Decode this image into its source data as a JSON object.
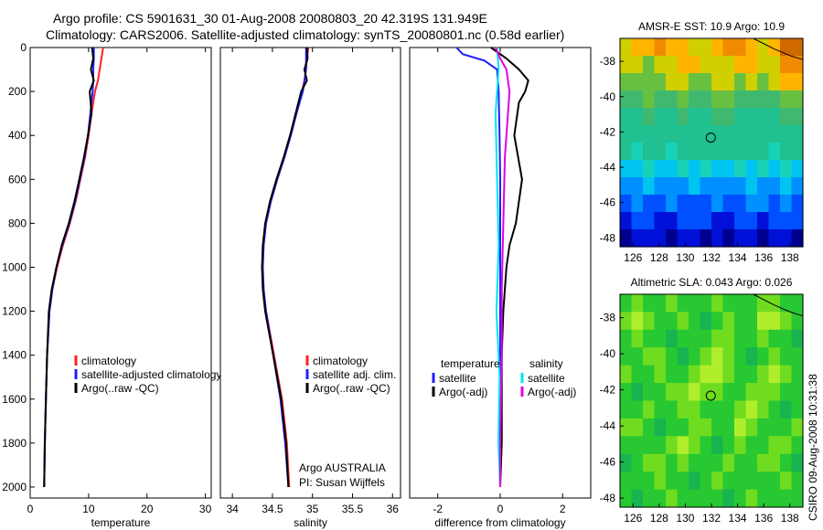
{
  "titles": {
    "line1": "Argo profile: CS 5901631_30 01-Aug-2008 20080803_20 42.319S 131.949E",
    "line2": "Climatology: CARS2006. Satellite-adjusted climatology: synTS_20080801.nc (0.58d earlier)"
  },
  "side_label": "CSIRO 09-Aug-2008 10:31:38",
  "institution": {
    "line1": "Argo AUSTRALIA",
    "line2": "PI: Susan Wijffels"
  },
  "colors": {
    "red": "#ff2020",
    "blue": "#1e1eff",
    "black": "#000000",
    "cyan": "#00e5ee",
    "magenta": "#e000e0"
  },
  "chart_data": [
    {
      "type": "line",
      "xlabel": "temperature",
      "xlim": [
        0,
        31
      ],
      "ylim": [
        2050,
        0
      ],
      "y_reversed": true,
      "xticks": [
        0,
        10,
        20,
        30
      ],
      "yticks": [
        0,
        200,
        400,
        600,
        800,
        1000,
        1200,
        1400,
        1600,
        1800,
        2000
      ],
      "legend": {
        "placement": "bottom-right",
        "entries": [
          "climatology",
          "satellite-adjusted climatology",
          "Argo(..raw -QC)"
        ]
      },
      "series": [
        {
          "name": "climatology",
          "color": "red",
          "x": [
            12.5,
            12.2,
            11.9,
            11.6,
            11.1,
            10.5,
            10.0,
            9.4,
            8.6,
            7.8,
            6.8,
            5.6,
            4.6,
            3.8,
            3.3,
            2.9,
            2.7,
            2.5,
            2.4
          ],
          "y": [
            0,
            50,
            100,
            150,
            200,
            300,
            400,
            500,
            600,
            700,
            800,
            900,
            1000,
            1100,
            1200,
            1400,
            1600,
            1800,
            2000
          ]
        },
        {
          "name": "satellite-adjusted climatology",
          "color": "blue",
          "x": [
            10.9,
            10.9,
            10.8,
            10.8,
            10.7,
            10.3,
            9.9,
            9.3,
            8.5,
            7.7,
            6.7,
            5.5,
            4.5,
            3.8,
            3.3,
            2.9,
            2.7,
            2.5,
            2.4
          ],
          "y": [
            0,
            50,
            100,
            150,
            200,
            300,
            400,
            500,
            600,
            700,
            800,
            900,
            1000,
            1100,
            1200,
            1400,
            1600,
            1800,
            2000
          ]
        },
        {
          "name": "Argo(..raw -QC)",
          "color": "black",
          "x": [
            10.6,
            10.8,
            10.4,
            10.9,
            10.2,
            10.5,
            9.9,
            9.2,
            8.4,
            7.6,
            6.6,
            5.4,
            4.5,
            3.7,
            3.2,
            2.9,
            2.7,
            2.5,
            2.4
          ],
          "y": [
            0,
            50,
            100,
            150,
            200,
            300,
            400,
            500,
            600,
            700,
            800,
            900,
            1000,
            1100,
            1200,
            1400,
            1600,
            1800,
            2000
          ]
        }
      ]
    },
    {
      "type": "line",
      "xlabel": "salinity",
      "xlim": [
        33.85,
        36.1
      ],
      "ylim": [
        2050,
        0
      ],
      "y_reversed": true,
      "xticks": [
        34,
        34.5,
        35,
        35.5,
        36
      ],
      "yticks": [],
      "legend": {
        "placement": "bottom-right",
        "entries": [
          "climatology",
          "satellite adj. clim.",
          "Argo(..raw -QC)"
        ]
      },
      "series": [
        {
          "name": "climatology",
          "color": "red",
          "x": [
            34.95,
            34.93,
            34.92,
            34.9,
            34.87,
            34.8,
            34.73,
            34.65,
            34.56,
            34.48,
            34.42,
            34.39,
            34.38,
            34.39,
            34.42,
            34.52,
            34.62,
            34.68,
            34.71
          ],
          "y": [
            0,
            50,
            100,
            150,
            200,
            300,
            400,
            500,
            600,
            700,
            800,
            900,
            1000,
            1100,
            1200,
            1400,
            1600,
            1800,
            2000
          ]
        },
        {
          "name": "satellite adj. clim.",
          "color": "blue",
          "x": [
            34.92,
            34.92,
            34.92,
            34.9,
            34.88,
            34.8,
            34.73,
            34.65,
            34.56,
            34.48,
            34.42,
            34.39,
            34.38,
            34.39,
            34.42,
            34.51,
            34.6,
            34.66,
            34.7
          ],
          "y": [
            0,
            50,
            100,
            150,
            200,
            300,
            400,
            500,
            600,
            700,
            800,
            900,
            1000,
            1100,
            1200,
            1400,
            1600,
            1800,
            2000
          ]
        },
        {
          "name": "Argo(..raw -QC)",
          "color": "black",
          "x": [
            34.93,
            34.94,
            34.9,
            34.93,
            34.86,
            34.79,
            34.72,
            34.64,
            34.55,
            34.47,
            34.41,
            34.38,
            34.37,
            34.38,
            34.41,
            34.51,
            34.61,
            34.67,
            34.7
          ],
          "y": [
            0,
            50,
            100,
            150,
            200,
            300,
            400,
            500,
            600,
            700,
            800,
            900,
            1000,
            1100,
            1200,
            1400,
            1600,
            1800,
            2000
          ]
        }
      ]
    },
    {
      "type": "line",
      "xlabel": "difference from climatology",
      "xlim": [
        -2.9,
        2.9
      ],
      "ylim": [
        2050,
        0
      ],
      "y_reversed": true,
      "xticks": [
        -2,
        0,
        2
      ],
      "yticks": [],
      "legend": {
        "placement": "bottom",
        "groups": [
          {
            "header": "temperature",
            "entries": [
              "satellite",
              "Argo(-adj)"
            ]
          },
          {
            "header": "salinity",
            "entries": [
              "satellite",
              "Argo(-adj)"
            ]
          }
        ]
      },
      "series": [
        {
          "name": "temperature satellite",
          "color": "blue",
          "x": [
            -1.4,
            -1.2,
            -0.5,
            -0.1,
            -0.05,
            -0.02,
            0.0,
            0.0,
            0.0,
            0.0,
            0.0,
            0.0
          ],
          "y": [
            0,
            30,
            60,
            100,
            200,
            400,
            600,
            800,
            1000,
            1400,
            1800,
            2000
          ]
        },
        {
          "name": "temperature Argo(-adj)",
          "color": "black",
          "x": [
            -0.3,
            0.2,
            0.6,
            0.9,
            0.8,
            0.6,
            0.45,
            0.7,
            0.5,
            0.3,
            0.2,
            0.1,
            0.05,
            0.05,
            0.0
          ],
          "y": [
            0,
            50,
            100,
            150,
            200,
            250,
            400,
            600,
            800,
            900,
            1000,
            1200,
            1400,
            1800,
            2000
          ]
        },
        {
          "name": "salinity satellite",
          "color": "cyan",
          "x": [
            -0.1,
            -0.05,
            -0.1,
            -0.15,
            -0.1,
            -0.05,
            -0.12,
            -0.02,
            -0.06,
            0.0
          ],
          "y": [
            0,
            100,
            200,
            300,
            600,
            900,
            1200,
            1500,
            1800,
            2000
          ]
        },
        {
          "name": "salinity Argo(-adj)",
          "color": "magenta",
          "x": [
            -0.15,
            0.0,
            0.2,
            0.3,
            0.25,
            0.15,
            0.1,
            0.05,
            0.05,
            0.0,
            0.0
          ],
          "y": [
            0,
            50,
            100,
            200,
            300,
            500,
            800,
            1100,
            1400,
            1800,
            2000
          ]
        }
      ]
    },
    {
      "type": "heatmap",
      "title": "AMSR-E SST: 10.9  Argo: 10.9",
      "xlim": [
        125,
        139
      ],
      "ylim": [
        -48.5,
        -36.7
      ],
      "xticks": [
        126,
        128,
        130,
        132,
        134,
        136,
        138
      ],
      "yticks": [
        -38,
        -40,
        -42,
        -44,
        -46,
        -48
      ],
      "marker": {
        "x": 131.95,
        "y": -42.32
      },
      "rows": [
        [
          3,
          4,
          4,
          5,
          4,
          4,
          3,
          3,
          4,
          5,
          5,
          4,
          3,
          4,
          6,
          6
        ],
        [
          3,
          3,
          2,
          3,
          3,
          4,
          4,
          3,
          3,
          3,
          4,
          4,
          3,
          3,
          5,
          5
        ],
        [
          2,
          2,
          2,
          2,
          3,
          3,
          2,
          2,
          3,
          3,
          2,
          3,
          2,
          3,
          4,
          4
        ],
        [
          1,
          1,
          2,
          1,
          1,
          2,
          1,
          1,
          2,
          2,
          1,
          1,
          1,
          1,
          2,
          2
        ],
        [
          0,
          0,
          1,
          0,
          0,
          1,
          0,
          0,
          1,
          1,
          0,
          0,
          0,
          0,
          1,
          1
        ],
        [
          0,
          0,
          0,
          0,
          0,
          0,
          0,
          0,
          0,
          0,
          0,
          0,
          0,
          0,
          0,
          0
        ],
        [
          0,
          -1,
          0,
          0,
          -1,
          0,
          0,
          0,
          0,
          0,
          0,
          0,
          0,
          -1,
          0,
          0
        ],
        [
          -2,
          -2,
          -1,
          -2,
          -2,
          -1,
          -2,
          -1,
          -2,
          -2,
          -1,
          -2,
          -1,
          -2,
          -1,
          -2
        ],
        [
          -3,
          -3,
          -2,
          -3,
          -3,
          -3,
          -2,
          -3,
          -3,
          -3,
          -3,
          -2,
          -3,
          -3,
          -2,
          -3
        ],
        [
          -4,
          -3,
          -4,
          -4,
          -3,
          -4,
          -4,
          -4,
          -3,
          -4,
          -4,
          -3,
          -3,
          -4,
          -3,
          -4
        ],
        [
          -5,
          -4,
          -4,
          -5,
          -5,
          -4,
          -4,
          -4,
          -5,
          -5,
          -4,
          -4,
          -5,
          -4,
          -4,
          -4
        ],
        [
          -6,
          -5,
          -5,
          -5,
          -6,
          -5,
          -5,
          -6,
          -5,
          -6,
          -5,
          -5,
          -6,
          -5,
          -5,
          -6
        ]
      ]
    },
    {
      "type": "heatmap",
      "title": "Altimetric SLA: 0.043  Argo: 0.026",
      "xlim": [
        125,
        139
      ],
      "ylim": [
        -48.5,
        -36.7
      ],
      "xticks": [
        126,
        128,
        130,
        132,
        134,
        136,
        138
      ],
      "yticks": [
        -38,
        -40,
        -42,
        -44,
        -46,
        -48
      ],
      "marker": {
        "x": 131.95,
        "y": -42.32
      },
      "rows": [
        [
          0,
          1,
          0,
          0,
          1,
          0,
          0,
          0,
          1,
          0,
          0,
          0,
          1,
          1,
          0,
          0
        ],
        [
          1,
          2,
          1,
          0,
          0,
          1,
          0,
          -1,
          0,
          1,
          0,
          0,
          2,
          2,
          1,
          0
        ],
        [
          0,
          1,
          0,
          0,
          -1,
          0,
          0,
          0,
          1,
          1,
          0,
          0,
          1,
          0,
          0,
          -1
        ],
        [
          0,
          0,
          1,
          1,
          0,
          -1,
          0,
          1,
          2,
          1,
          0,
          -1,
          0,
          1,
          0,
          0
        ],
        [
          1,
          0,
          0,
          1,
          0,
          0,
          1,
          2,
          2,
          1,
          0,
          0,
          1,
          2,
          1,
          0
        ],
        [
          0,
          -1,
          0,
          0,
          1,
          1,
          2,
          1,
          1,
          0,
          0,
          1,
          1,
          1,
          0,
          0
        ],
        [
          0,
          0,
          1,
          0,
          0,
          1,
          1,
          0,
          0,
          0,
          1,
          2,
          1,
          0,
          -1,
          0
        ],
        [
          1,
          1,
          0,
          -1,
          0,
          0,
          1,
          1,
          0,
          0,
          2,
          1,
          0,
          0,
          0,
          1
        ],
        [
          0,
          0,
          0,
          0,
          1,
          2,
          1,
          0,
          -1,
          0,
          1,
          0,
          0,
          1,
          1,
          0
        ],
        [
          -1,
          0,
          1,
          1,
          0,
          1,
          0,
          0,
          0,
          1,
          0,
          0,
          1,
          1,
          0,
          -1
        ],
        [
          0,
          0,
          0,
          1,
          0,
          0,
          -1,
          0,
          1,
          0,
          0,
          0,
          0,
          0,
          1,
          0
        ],
        [
          0,
          -1,
          0,
          0,
          1,
          0,
          0,
          0,
          0,
          -1,
          0,
          1,
          0,
          0,
          0,
          0
        ]
      ]
    }
  ]
}
